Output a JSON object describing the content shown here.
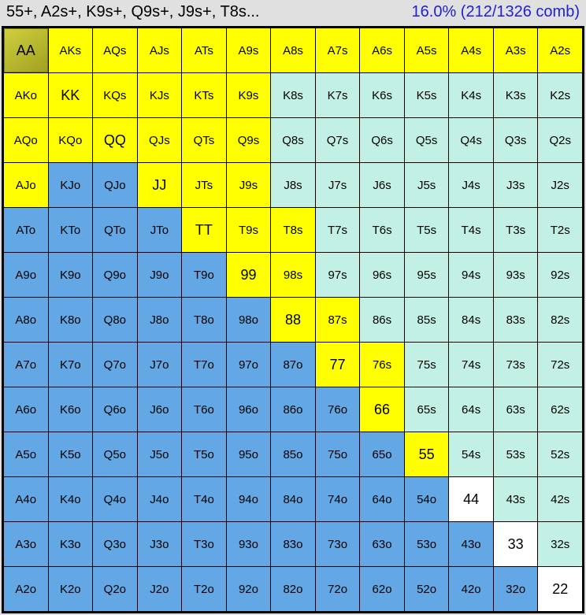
{
  "header": {
    "range_text": "55+, A2s+, K9s+, Q9s+, J9s+, T8s...",
    "pct_text": "16.0%  (212/1326 comb)"
  },
  "ranks": [
    "A",
    "K",
    "Q",
    "J",
    "T",
    "9",
    "8",
    "7",
    "6",
    "5",
    "4",
    "3",
    "2"
  ],
  "colors": {
    "in_range": "#ffff00",
    "suited_out": "#c2f0e4",
    "offsuit_out": "#63a7e4",
    "pair_out": "#ffffff",
    "active_pair": "#a0a020",
    "grid_border": "#000000",
    "pct_color": "#2020d4"
  },
  "cells": [
    [
      "AA",
      "Y",
      "A"
    ],
    [
      "AKs",
      "Y"
    ],
    [
      "AQs",
      "Y"
    ],
    [
      "AJs",
      "Y"
    ],
    [
      "ATs",
      "Y"
    ],
    [
      "A9s",
      "Y"
    ],
    [
      "A8s",
      "Y"
    ],
    [
      "A7s",
      "Y"
    ],
    [
      "A6s",
      "Y"
    ],
    [
      "A5s",
      "Y"
    ],
    [
      "A4s",
      "Y"
    ],
    [
      "A3s",
      "Y"
    ],
    [
      "A2s",
      "Y"
    ],
    [
      "AKo",
      "Y"
    ],
    [
      "KK",
      "Y"
    ],
    [
      "KQs",
      "Y"
    ],
    [
      "KJs",
      "Y"
    ],
    [
      "KTs",
      "Y"
    ],
    [
      "K9s",
      "Y"
    ],
    [
      "K8s",
      "T"
    ],
    [
      "K7s",
      "T"
    ],
    [
      "K6s",
      "T"
    ],
    [
      "K5s",
      "T"
    ],
    [
      "K4s",
      "T"
    ],
    [
      "K3s",
      "T"
    ],
    [
      "K2s",
      "T"
    ],
    [
      "AQo",
      "Y"
    ],
    [
      "KQo",
      "Y"
    ],
    [
      "QQ",
      "Y"
    ],
    [
      "QJs",
      "Y"
    ],
    [
      "QTs",
      "Y"
    ],
    [
      "Q9s",
      "Y"
    ],
    [
      "Q8s",
      "T"
    ],
    [
      "Q7s",
      "T"
    ],
    [
      "Q6s",
      "T"
    ],
    [
      "Q5s",
      "T"
    ],
    [
      "Q4s",
      "T"
    ],
    [
      "Q3s",
      "T"
    ],
    [
      "Q2s",
      "T"
    ],
    [
      "AJo",
      "Y"
    ],
    [
      "KJo",
      "B"
    ],
    [
      "QJo",
      "B"
    ],
    [
      "JJ",
      "Y"
    ],
    [
      "JTs",
      "Y"
    ],
    [
      "J9s",
      "Y"
    ],
    [
      "J8s",
      "T"
    ],
    [
      "J7s",
      "T"
    ],
    [
      "J6s",
      "T"
    ],
    [
      "J5s",
      "T"
    ],
    [
      "J4s",
      "T"
    ],
    [
      "J3s",
      "T"
    ],
    [
      "J2s",
      "T"
    ],
    [
      "ATo",
      "B"
    ],
    [
      "KTo",
      "B"
    ],
    [
      "QTo",
      "B"
    ],
    [
      "JTo",
      "B"
    ],
    [
      "TT",
      "Y"
    ],
    [
      "T9s",
      "Y"
    ],
    [
      "T8s",
      "Y"
    ],
    [
      "T7s",
      "T"
    ],
    [
      "T6s",
      "T"
    ],
    [
      "T5s",
      "T"
    ],
    [
      "T4s",
      "T"
    ],
    [
      "T3s",
      "T"
    ],
    [
      "T2s",
      "T"
    ],
    [
      "A9o",
      "B"
    ],
    [
      "K9o",
      "B"
    ],
    [
      "Q9o",
      "B"
    ],
    [
      "J9o",
      "B"
    ],
    [
      "T9o",
      "B"
    ],
    [
      "99",
      "Y"
    ],
    [
      "98s",
      "Y"
    ],
    [
      "97s",
      "T"
    ],
    [
      "96s",
      "T"
    ],
    [
      "95s",
      "T"
    ],
    [
      "94s",
      "T"
    ],
    [
      "93s",
      "T"
    ],
    [
      "92s",
      "T"
    ],
    [
      "A8o",
      "B"
    ],
    [
      "K8o",
      "B"
    ],
    [
      "Q8o",
      "B"
    ],
    [
      "J8o",
      "B"
    ],
    [
      "T8o",
      "B"
    ],
    [
      "98o",
      "B"
    ],
    [
      "88",
      "Y"
    ],
    [
      "87s",
      "Y"
    ],
    [
      "86s",
      "T"
    ],
    [
      "85s",
      "T"
    ],
    [
      "84s",
      "T"
    ],
    [
      "83s",
      "T"
    ],
    [
      "82s",
      "T"
    ],
    [
      "A7o",
      "B"
    ],
    [
      "K7o",
      "B"
    ],
    [
      "Q7o",
      "B"
    ],
    [
      "J7o",
      "B"
    ],
    [
      "T7o",
      "B"
    ],
    [
      "97o",
      "B"
    ],
    [
      "87o",
      "B"
    ],
    [
      "77",
      "Y"
    ],
    [
      "76s",
      "Y"
    ],
    [
      "75s",
      "T"
    ],
    [
      "74s",
      "T"
    ],
    [
      "73s",
      "T"
    ],
    [
      "72s",
      "T"
    ],
    [
      "A6o",
      "B"
    ],
    [
      "K6o",
      "B"
    ],
    [
      "Q6o",
      "B"
    ],
    [
      "J6o",
      "B"
    ],
    [
      "T6o",
      "B"
    ],
    [
      "96o",
      "B"
    ],
    [
      "86o",
      "B"
    ],
    [
      "76o",
      "B"
    ],
    [
      "66",
      "Y"
    ],
    [
      "65s",
      "T"
    ],
    [
      "64s",
      "T"
    ],
    [
      "63s",
      "T"
    ],
    [
      "62s",
      "T"
    ],
    [
      "A5o",
      "B"
    ],
    [
      "K5o",
      "B"
    ],
    [
      "Q5o",
      "B"
    ],
    [
      "J5o",
      "B"
    ],
    [
      "T5o",
      "B"
    ],
    [
      "95o",
      "B"
    ],
    [
      "85o",
      "B"
    ],
    [
      "75o",
      "B"
    ],
    [
      "65o",
      "B"
    ],
    [
      "55",
      "Y"
    ],
    [
      "54s",
      "T"
    ],
    [
      "53s",
      "T"
    ],
    [
      "52s",
      "T"
    ],
    [
      "A4o",
      "B"
    ],
    [
      "K4o",
      "B"
    ],
    [
      "Q4o",
      "B"
    ],
    [
      "J4o",
      "B"
    ],
    [
      "T4o",
      "B"
    ],
    [
      "94o",
      "B"
    ],
    [
      "84o",
      "B"
    ],
    [
      "74o",
      "B"
    ],
    [
      "64o",
      "B"
    ],
    [
      "54o",
      "B"
    ],
    [
      "44",
      "W"
    ],
    [
      "43s",
      "T"
    ],
    [
      "42s",
      "T"
    ],
    [
      "A3o",
      "B"
    ],
    [
      "K3o",
      "B"
    ],
    [
      "Q3o",
      "B"
    ],
    [
      "J3o",
      "B"
    ],
    [
      "T3o",
      "B"
    ],
    [
      "93o",
      "B"
    ],
    [
      "83o",
      "B"
    ],
    [
      "73o",
      "B"
    ],
    [
      "63o",
      "B"
    ],
    [
      "53o",
      "B"
    ],
    [
      "43o",
      "B"
    ],
    [
      "33",
      "W"
    ],
    [
      "32s",
      "T"
    ],
    [
      "A2o",
      "B"
    ],
    [
      "K2o",
      "B"
    ],
    [
      "Q2o",
      "B"
    ],
    [
      "J2o",
      "B"
    ],
    [
      "T2o",
      "B"
    ],
    [
      "92o",
      "B"
    ],
    [
      "82o",
      "B"
    ],
    [
      "72o",
      "B"
    ],
    [
      "62o",
      "B"
    ],
    [
      "52o",
      "B"
    ],
    [
      "42o",
      "B"
    ],
    [
      "32o",
      "B"
    ],
    [
      "22",
      "W"
    ]
  ]
}
